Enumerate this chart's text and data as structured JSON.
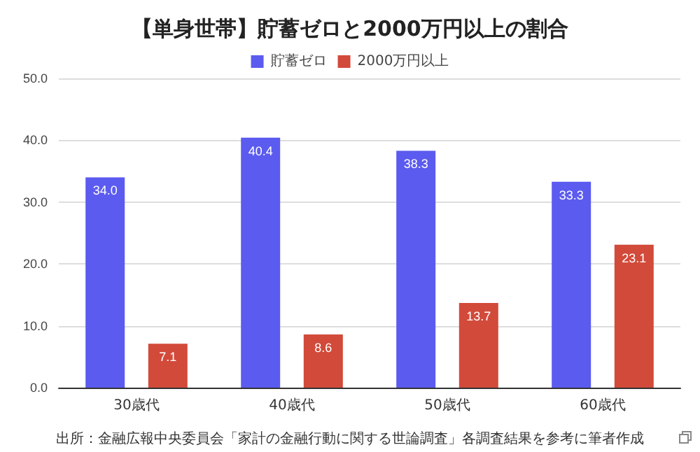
{
  "chart_data": {
    "type": "bar",
    "title": "【単身世帯】貯蓄ゼロと2000万円以上の割合",
    "categories": [
      "30歳代",
      "40歳代",
      "50歳代",
      "60歳代"
    ],
    "series": [
      {
        "name": "貯蓄ゼロ",
        "color": "#5b5bf0",
        "values": [
          34.0,
          40.4,
          38.3,
          33.3
        ],
        "value_labels": [
          "34.0",
          "40.4",
          "38.3",
          "33.3"
        ]
      },
      {
        "name": "2000万円以上",
        "color": "#d24a3a",
        "values": [
          7.1,
          8.6,
          13.7,
          23.1
        ],
        "value_labels": [
          "7.1",
          "8.6",
          "13.7",
          "23.1"
        ]
      }
    ],
    "ylim": [
      0,
      50
    ],
    "yticks": [
      {
        "value": 0,
        "label": "0.0"
      },
      {
        "value": 10,
        "label": "10.0"
      },
      {
        "value": 20,
        "label": "20.0"
      },
      {
        "value": 30,
        "label": "30.0"
      },
      {
        "value": 40,
        "label": "40.0"
      },
      {
        "value": 50,
        "label": "50.0"
      }
    ],
    "grid": "y",
    "legend": "top",
    "annotations": [
      "出所：金融広報中央委員会「家計の金融行動に関する世論調査」各調査結果を参考に筆者作成"
    ]
  }
}
